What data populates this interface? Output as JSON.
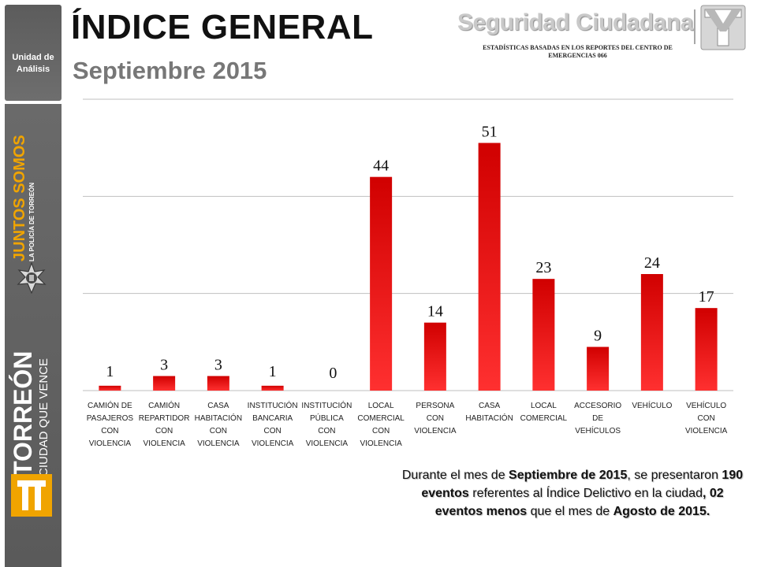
{
  "header": {
    "title": "ÍNDICE GENERAL",
    "subtitle": "Septiembre 2015",
    "brand_name": "Seguridad Ciudadana",
    "brand_caption": "ESTADÍSTICAS BASADAS EN LOS REPORTES DEL CENTRO DE EMERGENCIAS 066"
  },
  "sidebar": {
    "unit_label": "Unidad de\nAnálisis",
    "juntos_title": "JUNTOS SOMOS",
    "juntos_subtitle": "LA POLICÍA DE TORREÓN",
    "city_name": "TORREÓN",
    "city_slogan": "CIUDAD QUE VENCE"
  },
  "colors": {
    "bar_top": "#d00000",
    "bar_bottom": "#ff3030",
    "gridline": "#bfbfbf",
    "brand_gray": "#c9c9c9",
    "juntos_orange": "#f0a400"
  },
  "chart_data": {
    "type": "bar",
    "title": "",
    "xlabel": "",
    "ylabel": "",
    "ylim": [
      0,
      60
    ],
    "grid": true,
    "categories": [
      "CAMIÓN DE PASAJEROS CON VIOLENCIA",
      "CAMIÓN REPARTIDOR CON VIOLENCIA",
      "CASA HABITACIÓN CON VIOLENCIA",
      "INSTITUCIÓN BANCARIA CON VIOLENCIA",
      "INSTITUCIÓN PÚBLICA CON VIOLENCIA",
      "LOCAL COMERCIAL CON VIOLENCIA",
      "PERSONA CON VIOLENCIA",
      "CASA HABITACIÓN",
      "LOCAL COMERCIAL",
      "ACCESORIO DE VEHÍCULOS",
      "VEHÍCULO",
      "VEHÍCULO CON VIOLENCIA"
    ],
    "tick_lines": [
      [
        "CAMIÓN DE",
        "PASAJEROS",
        "CON",
        "VIOLENCIA"
      ],
      [
        "CAMIÓN",
        "REPARTIDOR",
        "CON",
        "VIOLENCIA"
      ],
      [
        "CASA",
        "HABITACIÓN",
        "CON",
        "VIOLENCIA"
      ],
      [
        "INSTITUCIÓN",
        "BANCARIA",
        "CON",
        "VIOLENCIA"
      ],
      [
        "INSTITUCIÓN",
        "PÚBLICA",
        "CON",
        "VIOLENCIA"
      ],
      [
        "LOCAL",
        "COMERCIAL",
        "CON",
        "VIOLENCIA"
      ],
      [
        "PERSONA",
        "CON",
        "VIOLENCIA"
      ],
      [
        "CASA",
        "HABITACIÓN"
      ],
      [
        "LOCAL",
        "COMERCIAL"
      ],
      [
        "ACCESORIO",
        "DE",
        "VEHÍCULOS"
      ],
      [
        "VEHÍCULO"
      ],
      [
        "VEHÍCULO",
        "CON",
        "VIOLENCIA"
      ]
    ],
    "values": [
      1,
      3,
      3,
      1,
      0,
      44,
      14,
      51,
      23,
      9,
      24,
      17
    ]
  },
  "summary": {
    "p1": "Durante el mes de ",
    "b1": "Septiembre de 2015",
    "p2": ", se presentaron ",
    "b2": "190 eventos",
    "p3": " referentes al Índice Delictivo en la ciudad",
    "b3": ", 02 eventos menos",
    "p4": " que el mes de ",
    "b4": "Agosto de 2015."
  }
}
